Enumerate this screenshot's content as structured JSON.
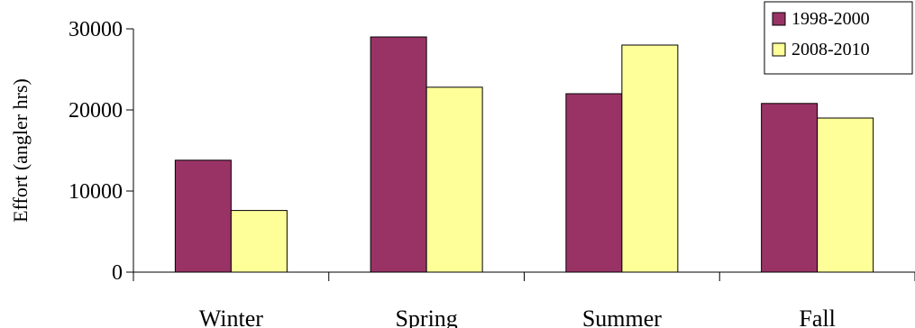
{
  "chart_data": {
    "type": "bar",
    "title": "",
    "xlabel": "",
    "ylabel": "Effort (angler hrs)",
    "ylim": [
      0,
      30000
    ],
    "yticks": [
      "0",
      "10000",
      "20000",
      "30000"
    ],
    "grid": false,
    "legend_position": "top-right",
    "categories": [
      "Winter",
      "Spring",
      "Summer",
      "Fall"
    ],
    "series": [
      {
        "name": "1998-2000",
        "color": "#993366",
        "values": [
          13800,
          29000,
          22000,
          20800
        ]
      },
      {
        "name": "2008-2010",
        "color": "#ffff99",
        "values": [
          7600,
          22800,
          28000,
          19000
        ]
      }
    ]
  }
}
